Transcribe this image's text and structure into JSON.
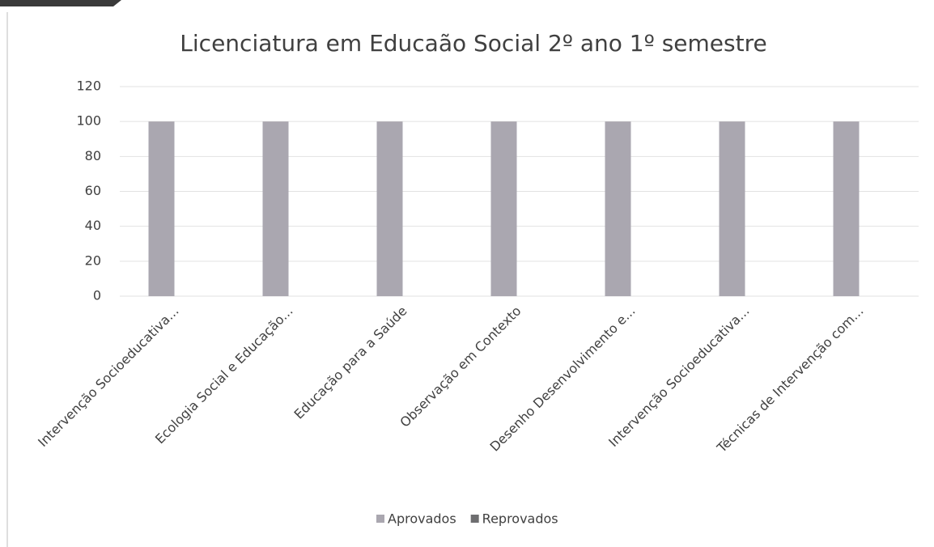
{
  "chart_data": {
    "type": "bar",
    "title": "Licenciatura em Educaão Social 2º ano 1º semestre",
    "categories": [
      "Intervenção Socioeducativa...",
      "Ecologia Social e Educação...",
      "Educação para a Saúde",
      "Observação em Contexto",
      "Desenho Desenvolvimento e...",
      "Intervenção Socioeducativa...",
      "Técnicas de Intervenção com..."
    ],
    "series": [
      {
        "name": "Aprovados",
        "color": "#aaa7b0",
        "values": [
          100,
          100,
          100,
          100,
          100,
          100,
          100
        ]
      },
      {
        "name": "Reprovados",
        "color": "#6e6e70",
        "values": [
          0,
          0,
          0,
          0,
          0,
          0,
          0
        ]
      }
    ],
    "ylim": [
      0,
      120
    ],
    "yticks": [
      0,
      20,
      40,
      60,
      80,
      100,
      120
    ],
    "grid": true,
    "legend": "bottom"
  }
}
